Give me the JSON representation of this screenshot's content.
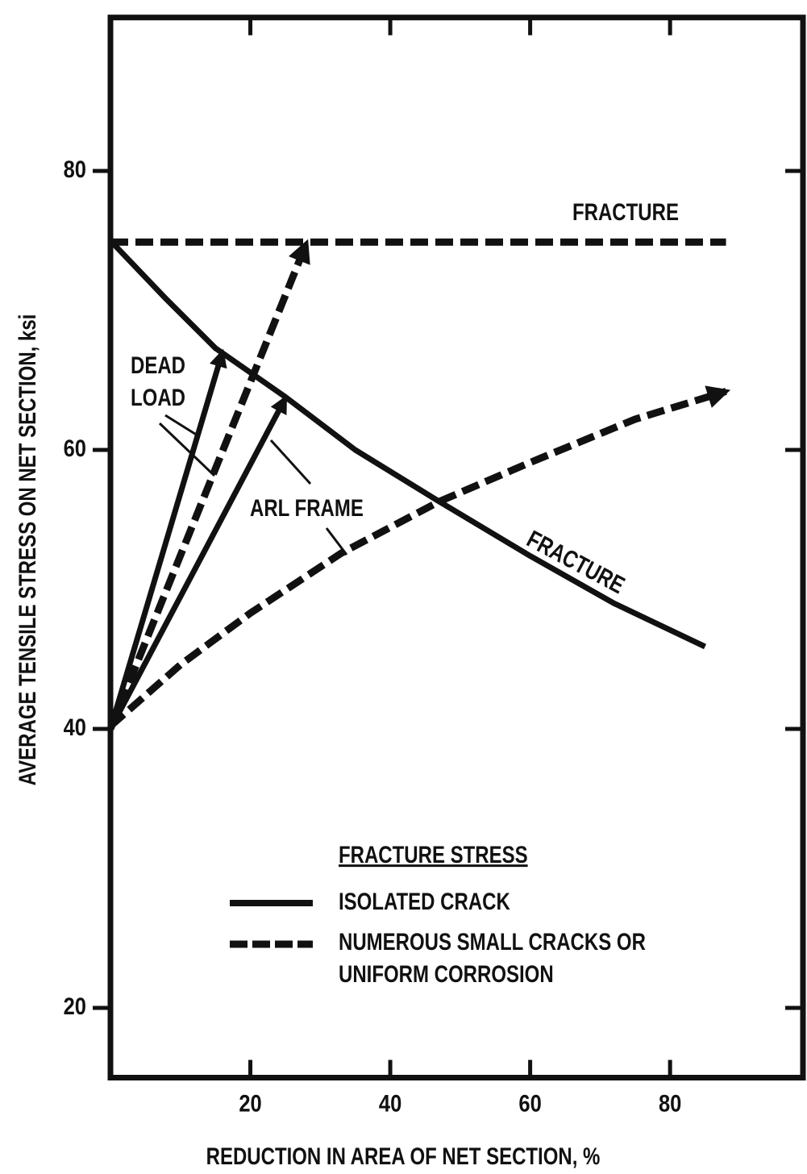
{
  "chart_data": {
    "type": "line",
    "x_label": "REDUCTION IN AREA OF NET SECTION, %",
    "y_label": "AVERAGE TENSILE STRESS ON NET SECTION, ksi",
    "xlim": [
      0,
      99
    ],
    "xticks": [
      20,
      40,
      60,
      80
    ],
    "ylim": [
      15,
      91
    ],
    "yticks": [
      20,
      40,
      60,
      80
    ],
    "legend_title": "FRACTURE STRESS",
    "series": [
      {
        "name": "ISOLATED CRACK",
        "color": "#111111",
        "dashed": false,
        "x": [
          0,
          8,
          15,
          25,
          35,
          47,
          60,
          72,
          85
        ],
        "values": [
          75,
          70.8,
          67.3,
          63.8,
          60,
          56.3,
          52.4,
          49,
          45.9
        ]
      },
      {
        "name": "NUMEROUS SMALL CRACKS OR UNIFORM CORROSION",
        "color": "#111111",
        "dashed": true,
        "x": [
          0,
          88
        ],
        "values": [
          74.9,
          74.9
        ]
      },
      {
        "color": "#111111",
        "dashed": true,
        "x": [
          0,
          10,
          20,
          33,
          47,
          60,
          75,
          88
        ],
        "values": [
          40.2,
          44.6,
          48.3,
          52.6,
          56.3,
          59.1,
          62.2,
          64.2
        ],
        "arrow": true
      },
      {
        "color": "#111111",
        "dashed": false,
        "x": [
          0,
          16
        ],
        "values": [
          40,
          67
        ],
        "arrow": true
      },
      {
        "color": "#111111",
        "dashed": false,
        "x": [
          0,
          25
        ],
        "values": [
          40,
          63.7
        ],
        "arrow": true
      },
      {
        "color": "#111111",
        "dashed": true,
        "x": [
          0,
          28
        ],
        "values": [
          40,
          74.8
        ],
        "arrow": true
      }
    ],
    "annotations": [
      "FRACTURE",
      "FRACTURE",
      "DEAD LOAD",
      "ARL FRAME"
    ]
  }
}
